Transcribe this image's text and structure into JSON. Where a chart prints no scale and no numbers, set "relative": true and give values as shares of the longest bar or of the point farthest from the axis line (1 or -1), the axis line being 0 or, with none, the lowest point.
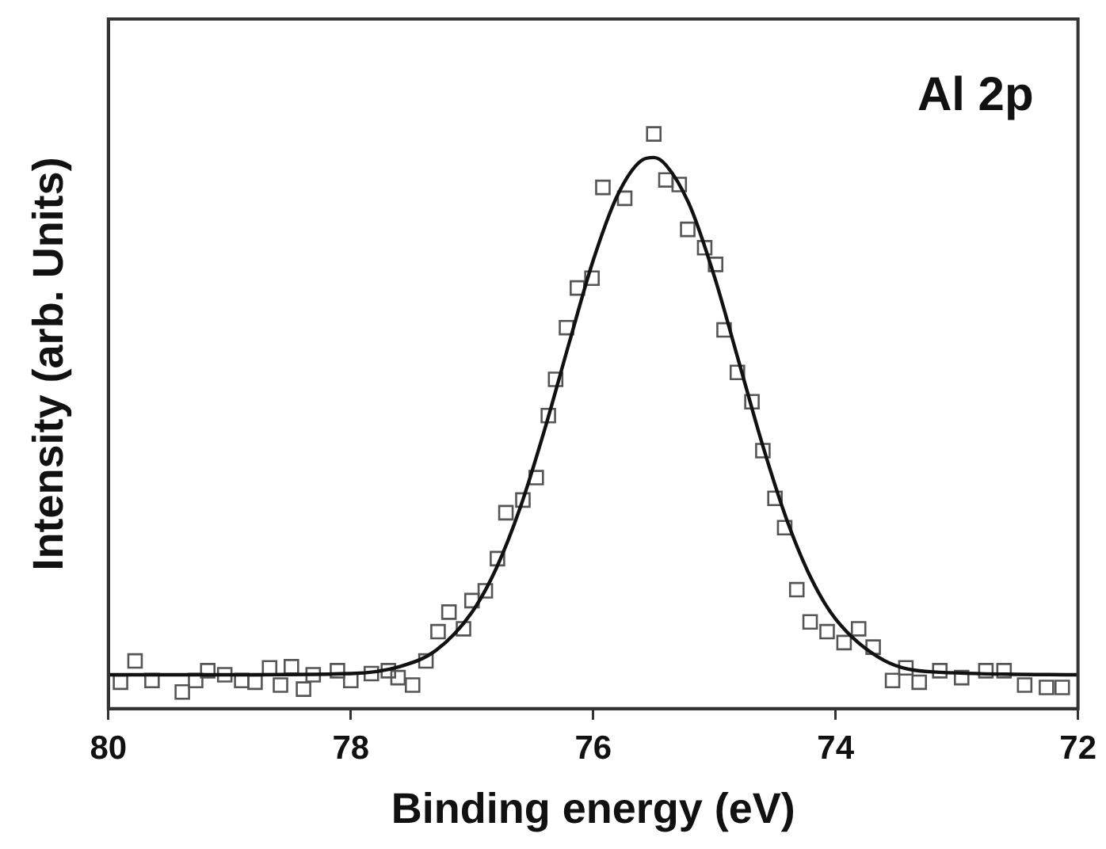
{
  "chart_data": {
    "type": "scatter",
    "xlabel": "Binding energy (eV)",
    "ylabel": "Intensity (arb. Units)",
    "annotations": [
      "Al 2p"
    ],
    "relative": true,
    "xlim": [
      80,
      72
    ],
    "xticks": [
      80,
      78,
      76,
      74,
      72
    ],
    "grid": false,
    "legend": false,
    "marker": "square",
    "series": [
      {
        "color": "#555555",
        "x": [
          79.9,
          79.78,
          79.64,
          79.39,
          79.28,
          79.18,
          79.04,
          78.9,
          78.79,
          78.67,
          78.58,
          78.49,
          78.39,
          78.31,
          78.11,
          78.0,
          77.83,
          77.69,
          77.61,
          77.49,
          77.38,
          77.28,
          77.19,
          77.07,
          77.0,
          76.89,
          76.79,
          76.72,
          76.58,
          76.47,
          76.37,
          76.31,
          76.22,
          76.13,
          76.01,
          75.92,
          75.74,
          75.5,
          75.4,
          75.29,
          75.22,
          75.08,
          74.99,
          74.92,
          74.81,
          74.69,
          74.6,
          74.5,
          74.42,
          74.32,
          74.21,
          74.07,
          73.93,
          73.81,
          73.69,
          73.53,
          73.42,
          73.31,
          73.14,
          72.96,
          72.76,
          72.61,
          72.44,
          72.26,
          72.13
        ],
        "values": [
          0.046,
          0.083,
          0.049,
          0.029,
          0.049,
          0.066,
          0.059,
          0.049,
          0.046,
          0.071,
          0.041,
          0.073,
          0.034,
          0.059,
          0.066,
          0.049,
          0.061,
          0.066,
          0.054,
          0.041,
          0.083,
          0.134,
          0.168,
          0.139,
          0.188,
          0.205,
          0.261,
          0.341,
          0.363,
          0.402,
          0.51,
          0.573,
          0.663,
          0.732,
          0.749,
          0.907,
          0.888,
          1.0,
          0.92,
          0.912,
          0.834,
          0.802,
          0.773,
          0.659,
          0.585,
          0.534,
          0.449,
          0.366,
          0.315,
          0.207,
          0.151,
          0.134,
          0.115,
          0.139,
          0.107,
          0.049,
          0.071,
          0.046,
          0.066,
          0.054,
          0.066,
          0.066,
          0.041,
          0.037,
          0.037
        ]
      },
      {
        "type": "line",
        "color": "#111111",
        "marker": "none",
        "line_style": "solid",
        "x": [
          80,
          79,
          78,
          77.6,
          77.3,
          77,
          76.8,
          76.6,
          76.4,
          76.2,
          76,
          75.8,
          75.6,
          75.5,
          75.4,
          75.2,
          75,
          74.8,
          74.6,
          74.4,
          74.2,
          74,
          73.6,
          73.2,
          72
        ],
        "values": [
          0.059,
          0.059,
          0.061,
          0.073,
          0.101,
          0.168,
          0.244,
          0.351,
          0.486,
          0.635,
          0.78,
          0.893,
          0.954,
          0.959,
          0.946,
          0.874,
          0.752,
          0.605,
          0.457,
          0.327,
          0.226,
          0.156,
          0.084,
          0.064,
          0.059
        ]
      }
    ]
  }
}
